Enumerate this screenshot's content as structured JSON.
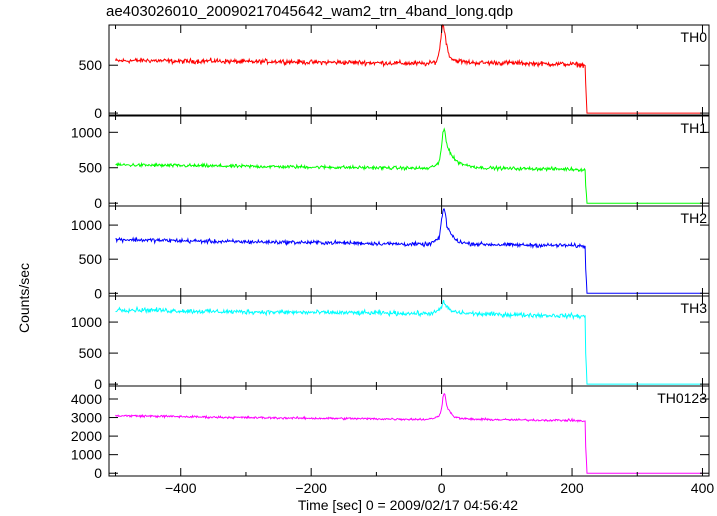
{
  "title": "ae403026010_20090217045642_wam2_trn_4band_long.qdp",
  "xlabel": "Time [sec] 0 = 2009/02/17 04:56:42",
  "ylabel": "Counts/sec",
  "chart_data": {
    "type": "line",
    "title": "ae403026010_20090217045642_wam2_trn_4band_long.qdp",
    "xlabel": "Time [sec] 0 = 2009/02/17 04:56:42",
    "ylabel": "Counts/sec",
    "xlim": [
      -510,
      410
    ],
    "x_ticks": [
      -400,
      -200,
      0,
      200,
      400
    ],
    "x_tick_labels": [
      "−400",
      "−200",
      "0",
      "200",
      "400"
    ],
    "grid": false,
    "panels": [
      {
        "name": "TH0",
        "color": "#ff0000",
        "ylim": [
          -20,
          920
        ],
        "y_ticks": [
          0,
          500
        ],
        "y_tick_labels": [
          "0",
          "500"
        ],
        "x": [
          -500,
          -450,
          -400,
          -350,
          -300,
          -250,
          -200,
          -150,
          -100,
          -50,
          -20,
          -8,
          -4,
          0,
          2,
          4,
          6,
          8,
          10,
          14,
          18,
          22,
          30,
          40,
          60,
          100,
          150,
          200,
          220,
          221,
          223,
          300,
          400
        ],
        "y": [
          545,
          550,
          540,
          545,
          535,
          540,
          530,
          530,
          525,
          520,
          515,
          540,
          620,
          860,
          920,
          880,
          800,
          700,
          640,
          580,
          560,
          550,
          540,
          530,
          525,
          525,
          515,
          510,
          500,
          300,
          0,
          0,
          0
        ]
      },
      {
        "name": "TH1",
        "color": "#00ff00",
        "ylim": [
          -40,
          1230
        ],
        "y_ticks": [
          0,
          500,
          1000
        ],
        "y_tick_labels": [
          "0",
          "500",
          "1000"
        ],
        "x": [
          -500,
          -450,
          -400,
          -350,
          -300,
          -250,
          -200,
          -150,
          -100,
          -50,
          -20,
          -4,
          0,
          2,
          4,
          6,
          8,
          10,
          14,
          18,
          22,
          30,
          40,
          60,
          100,
          150,
          200,
          220,
          221,
          223,
          300,
          400
        ],
        "y": [
          540,
          535,
          530,
          525,
          520,
          515,
          510,
          505,
          500,
          495,
          490,
          560,
          800,
          1000,
          1050,
          950,
          850,
          780,
          700,
          640,
          600,
          560,
          530,
          500,
          490,
          485,
          480,
          470,
          250,
          0,
          0,
          0
        ]
      },
      {
        "name": "TH2",
        "color": "#0000ff",
        "ylim": [
          -40,
          1280
        ],
        "y_ticks": [
          0,
          500,
          1000
        ],
        "y_tick_labels": [
          "0",
          "500",
          "1000"
        ],
        "x": [
          -500,
          -450,
          -400,
          -350,
          -300,
          -250,
          -200,
          -150,
          -100,
          -50,
          -20,
          -4,
          0,
          2,
          4,
          6,
          8,
          10,
          14,
          18,
          22,
          30,
          40,
          60,
          100,
          150,
          200,
          220,
          221,
          223,
          300,
          400
        ],
        "y": [
          790,
          780,
          770,
          760,
          755,
          750,
          745,
          740,
          730,
          720,
          715,
          800,
          1050,
          1200,
          1250,
          1150,
          1000,
          950,
          880,
          820,
          780,
          750,
          730,
          720,
          710,
          705,
          700,
          690,
          350,
          0,
          0,
          0
        ]
      },
      {
        "name": "TH3",
        "color": "#00ffff",
        "ylim": [
          -30,
          1420
        ],
        "y_ticks": [
          0,
          500,
          1000
        ],
        "y_tick_labels": [
          "0",
          "500",
          "1000"
        ],
        "x": [
          -500,
          -450,
          -400,
          -350,
          -300,
          -250,
          -200,
          -150,
          -100,
          -50,
          -20,
          -4,
          0,
          3,
          6,
          10,
          15,
          22,
          30,
          40,
          60,
          100,
          150,
          200,
          220,
          221,
          223,
          300,
          400
        ],
        "y": [
          1200,
          1195,
          1180,
          1170,
          1165,
          1160,
          1155,
          1150,
          1145,
          1140,
          1135,
          1180,
          1250,
          1320,
          1280,
          1220,
          1180,
          1160,
          1150,
          1140,
          1130,
          1120,
          1110,
          1100,
          1090,
          500,
          0,
          0,
          0
        ]
      },
      {
        "name": "TH0123",
        "color": "#ff00ff",
        "ylim": [
          -150,
          4700
        ],
        "y_ticks": [
          0,
          1000,
          2000,
          3000,
          4000
        ],
        "y_tick_labels": [
          "0",
          "1000",
          "2000",
          "3000",
          "4000"
        ],
        "x": [
          -500,
          -450,
          -400,
          -350,
          -300,
          -250,
          -200,
          -150,
          -100,
          -50,
          -20,
          -4,
          0,
          2,
          4,
          6,
          8,
          10,
          14,
          18,
          22,
          30,
          40,
          60,
          100,
          150,
          200,
          220,
          221,
          223,
          300,
          400
        ],
        "y": [
          3100,
          3080,
          3050,
          3020,
          3000,
          2980,
          2960,
          2950,
          2930,
          2910,
          2900,
          3050,
          3500,
          4100,
          4350,
          4050,
          3700,
          3450,
          3250,
          3100,
          3000,
          2950,
          2920,
          2900,
          2880,
          2860,
          2850,
          2800,
          1400,
          0,
          0,
          0
        ]
      }
    ]
  }
}
